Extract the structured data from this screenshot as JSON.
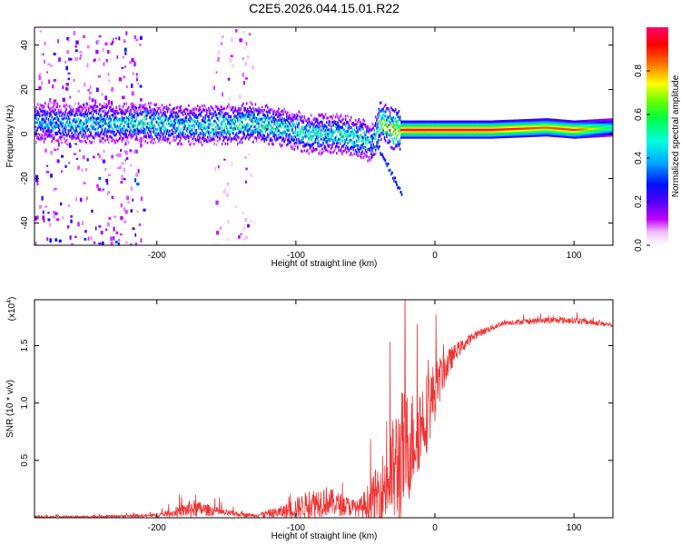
{
  "title": "C2E5.2026.044.15.01.R22",
  "chart_data": [
    {
      "type": "heatmap",
      "xlabel": "Height of straight line (km)",
      "ylabel": "Frequency (Hz)",
      "xlim": [
        -288,
        128
      ],
      "ylim": [
        -50,
        48
      ],
      "x_ticks": [
        -200,
        -100,
        0,
        100
      ],
      "x_tick_labels": [
        "-200",
        "-100",
        "0",
        "100"
      ],
      "y_ticks": [
        -40,
        -20,
        0,
        20,
        40
      ],
      "y_tick_labels": [
        "-40",
        "-20",
        "0",
        "20",
        "40"
      ],
      "colorbar": {
        "label": "Normalized spectral amplitude",
        "range": [
          0,
          1
        ],
        "ticks": [
          0.0,
          0.2,
          0.4,
          0.6,
          0.8
        ],
        "tick_labels": [
          "0.0",
          "0.2",
          "0.4",
          "0.6",
          "0.8"
        ],
        "colors": [
          "#ffffff",
          "#ff00ff",
          "#6600ff",
          "#0000ff",
          "#00aaff",
          "#00ffff",
          "#00ff66",
          "#00ff00",
          "#aaff00",
          "#ffff00",
          "#ff6600",
          "#ff0000",
          "#ff0066"
        ]
      },
      "ridge": {
        "x": [
          -280,
          -240,
          -200,
          -180,
          -160,
          -130,
          -110,
          -90,
          -70,
          -55,
          -45,
          -40,
          -35,
          -30,
          -20,
          0,
          40,
          80,
          100,
          128
        ],
        "freq": [
          5,
          5,
          5,
          4,
          4,
          5,
          3,
          0,
          0,
          -2,
          -4,
          6,
          4,
          2,
          2,
          2,
          2,
          3,
          2,
          3
        ],
        "amplitude": [
          0.45,
          0.5,
          0.55,
          0.5,
          0.55,
          0.6,
          0.55,
          0.6,
          0.55,
          0.6,
          0.45,
          0.7,
          0.8,
          0.9,
          0.95,
          0.95,
          0.95,
          0.85,
          0.9,
          0.55
        ]
      },
      "noise_regions": [
        {
          "x_range": [
            -288,
            -210
          ],
          "amplitude": 0.35
        },
        {
          "x_range": [
            -160,
            -130
          ],
          "amplitude": 0.2
        }
      ]
    },
    {
      "type": "line",
      "xlabel": "Height of straight line (km)",
      "ylabel": "SNR (10 * v/v)",
      "y_scale_label": "(x10",
      "y_scale_exp": "4",
      "y_scale_close": ")",
      "xlim": [
        -288,
        128
      ],
      "ylim": [
        0,
        1.9
      ],
      "x_ticks": [
        -200,
        -100,
        0,
        100
      ],
      "x_tick_labels": [
        "-200",
        "-100",
        "0",
        "100"
      ],
      "y_ticks": [
        0.5,
        1.0,
        1.5
      ],
      "y_tick_labels": [
        "0.5",
        "1.0",
        "1.5"
      ],
      "color": "#ee3333",
      "envelope": {
        "x": [
          -288,
          -250,
          -200,
          -185,
          -175,
          -165,
          -150,
          -130,
          -110,
          -90,
          -80,
          -70,
          -55,
          -45,
          -35,
          -25,
          -15,
          -5,
          5,
          15,
          30,
          50,
          80,
          100,
          128
        ],
        "base": [
          0.01,
          0.01,
          0.02,
          0.05,
          0.08,
          0.07,
          0.04,
          0.02,
          0.05,
          0.12,
          0.15,
          0.12,
          0.08,
          0.15,
          0.3,
          0.5,
          0.7,
          0.95,
          1.25,
          1.45,
          1.6,
          1.7,
          1.72,
          1.72,
          1.68
        ],
        "noise": [
          0.01,
          0.01,
          0.02,
          0.06,
          0.12,
          0.08,
          0.04,
          0.02,
          0.08,
          0.18,
          0.2,
          0.15,
          0.1,
          0.3,
          0.5,
          0.9,
          0.6,
          0.5,
          0.25,
          0.1,
          0.05,
          0.03,
          0.04,
          0.04,
          0.03
        ]
      }
    }
  ]
}
